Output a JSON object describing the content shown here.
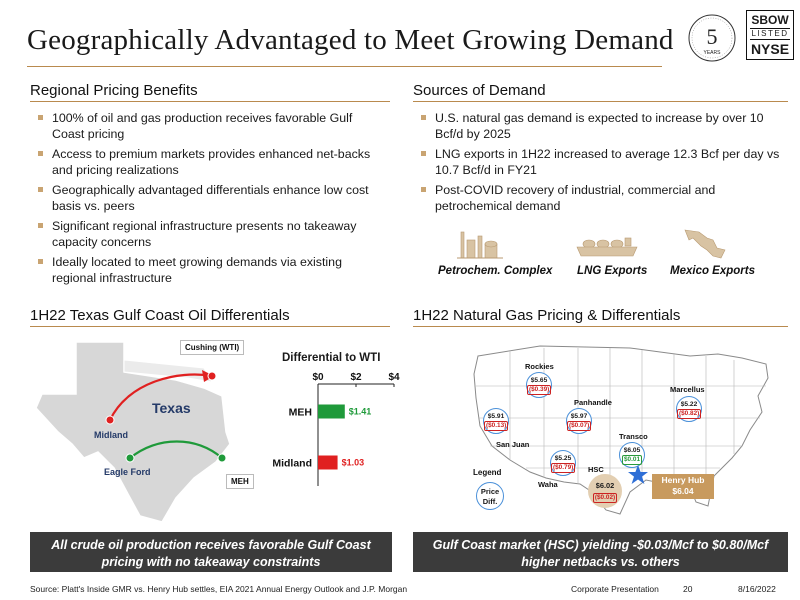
{
  "header": {
    "title": "Geographically Advantaged to Meet Growing Demand",
    "badge_number": "5",
    "badge_text": "YEARS",
    "listing": {
      "ticker": "SBOW",
      "listed": "LISTED",
      "exchange": "NYSE"
    }
  },
  "left_top": {
    "title": "Regional Pricing Benefits",
    "bullets": [
      "100% of oil and gas production receives favorable Gulf Coast pricing",
      "Access to premium markets provides enhanced net-backs and pricing realizations",
      "Geographically advantaged differentials enhance low cost basis vs. peers",
      "Significant regional infrastructure presents no takeaway capacity concerns",
      "Ideally located to meet growing demands via existing regional infrastructure"
    ]
  },
  "right_top": {
    "title": "Sources of Demand",
    "bullets": [
      "U.S. natural gas demand is expected to increase by over 10 Bcf/d by 2025",
      "LNG exports in 1H22 increased to average 12.3 Bcf per day vs 10.7 Bcf/d in FY21",
      "Post-COVID recovery of industrial, commercial and petrochemical demand"
    ],
    "demand_sources": [
      "Petrochem. Complex",
      "LNG Exports",
      "Mexico Exports"
    ]
  },
  "left_bottom": {
    "title": "1H22 Texas Gulf Coast Oil Differentials",
    "map_labels": {
      "state": "Texas",
      "cushing": "Cushing (WTI)",
      "midland": "Midland",
      "eagle_ford": "Eagle Ford",
      "meh": "MEH"
    },
    "banner": "All crude oil production receives favorable Gulf Coast pricing with no takeaway constraints"
  },
  "right_bottom": {
    "title": "1H22 Natural Gas Pricing & Differentials",
    "hubs": [
      {
        "name": "Rockies",
        "price": "$5.65",
        "diff": "($0.39)"
      },
      {
        "name": "Panhandle",
        "price": "$5.97",
        "diff": "($0.07)"
      },
      {
        "name": "",
        "price": "$5.91",
        "diff": "($0.13)"
      },
      {
        "name": "San Juan",
        "price": "$5.25",
        "diff": "($0.79)"
      },
      {
        "name": "Waha",
        "price": "",
        "diff": ""
      },
      {
        "name": "Marcellus",
        "price": "$5.22",
        "diff": "($0.82)"
      },
      {
        "name": "Transco",
        "price": "$6.05",
        "diff": "$0.01"
      },
      {
        "name": "HSC",
        "price": "$6.02",
        "diff": "($0.02)"
      }
    ],
    "henry_hub": {
      "name": "Henry Hub",
      "price": "$6.04"
    },
    "legend": {
      "title": "Legend",
      "price": "Price",
      "diff": "Diff."
    },
    "banner": "Gulf Coast market (HSC) yielding -$0.03/Mcf to $0.80/Mcf higher netbacks vs. others"
  },
  "footer": {
    "source": "Source: Platt's Inside GMR vs. Henry Hub settles, EIA 2021 Annual Energy Outlook and J.P. Morgan",
    "label": "Corporate Presentation",
    "page": "20",
    "date": "8/16/2022"
  },
  "chart_data": {
    "type": "bar",
    "orientation": "horizontal",
    "title": "Differential to WTI",
    "categories": [
      "MEH",
      "Midland"
    ],
    "values": [
      1.41,
      1.03
    ],
    "value_labels": [
      "$1.41",
      "$1.03"
    ],
    "colors": [
      "#1f9a3a",
      "#e02020"
    ],
    "xlim": [
      0,
      4
    ],
    "x_ticks": [
      "$0",
      "$2",
      "$4"
    ],
    "xlabel": "",
    "ylabel": ""
  }
}
